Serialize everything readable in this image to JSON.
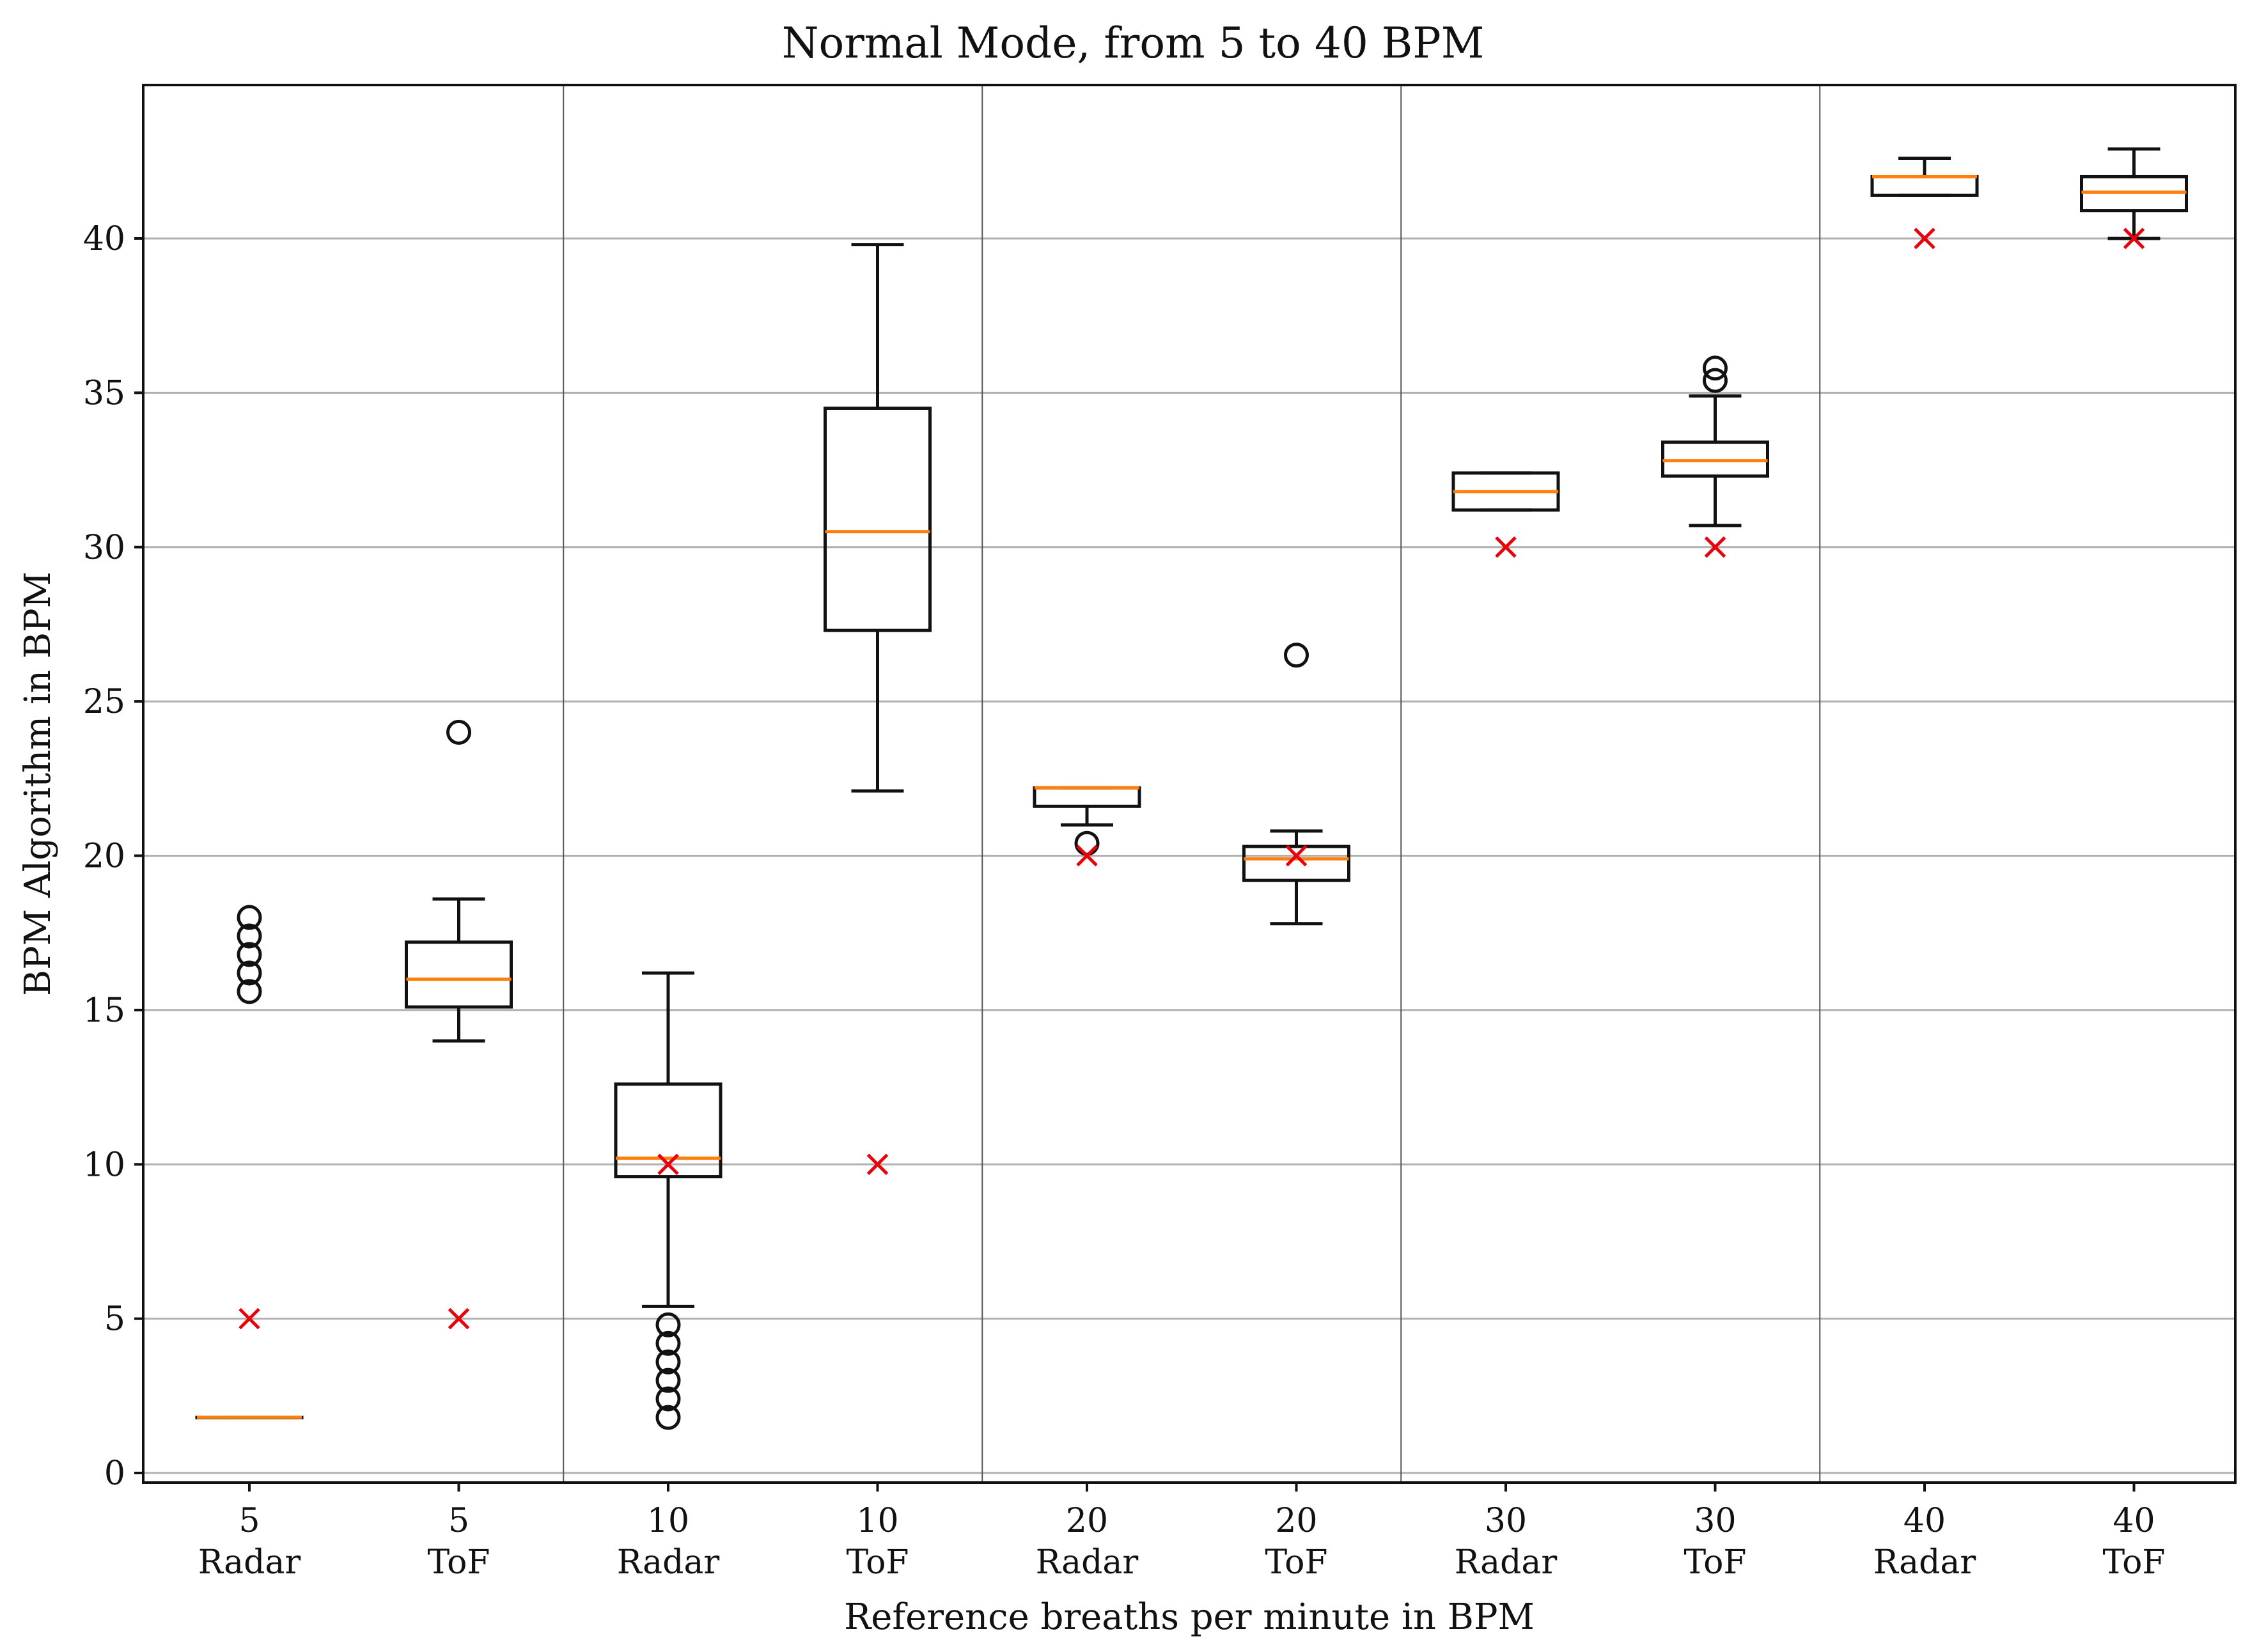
{
  "chart_data": {
    "type": "boxplot",
    "title": "Normal Mode, from 5 to 40 BPM",
    "xlabel": "Reference breaths per minute in BPM",
    "ylabel": "BPM Algorithm in BPM",
    "ylim": [
      -0.3,
      45
    ],
    "yticks": [
      0,
      5,
      10,
      15,
      20,
      25,
      30,
      35,
      40
    ],
    "grid": true,
    "categories": [
      {
        "value": "5",
        "sensor": "Radar"
      },
      {
        "value": "5",
        "sensor": "ToF"
      },
      {
        "value": "10",
        "sensor": "Radar"
      },
      {
        "value": "10",
        "sensor": "ToF"
      },
      {
        "value": "20",
        "sensor": "Radar"
      },
      {
        "value": "20",
        "sensor": "ToF"
      },
      {
        "value": "30",
        "sensor": "Radar"
      },
      {
        "value": "30",
        "sensor": "ToF"
      },
      {
        "value": "40",
        "sensor": "Radar"
      },
      {
        "value": "40",
        "sensor": "ToF"
      }
    ],
    "boxes": [
      {
        "whislo": 1.8,
        "q1": 1.8,
        "med": 1.8,
        "q3": 1.8,
        "whishi": 1.8,
        "fliers": [
          15.6,
          16.2,
          16.8,
          17.4,
          18.0
        ],
        "reference": 5
      },
      {
        "whislo": 14.0,
        "q1": 15.1,
        "med": 16.0,
        "q3": 17.2,
        "whishi": 18.6,
        "fliers": [
          24.0
        ],
        "reference": 5
      },
      {
        "whislo": 5.4,
        "q1": 9.6,
        "med": 10.2,
        "q3": 12.6,
        "whishi": 16.2,
        "fliers": [
          1.8,
          2.4,
          3.0,
          3.6,
          4.2,
          4.8
        ],
        "reference": 10
      },
      {
        "whislo": 22.1,
        "q1": 27.3,
        "med": 30.5,
        "q3": 34.5,
        "whishi": 39.8,
        "fliers": [],
        "reference": 10
      },
      {
        "whislo": 21.0,
        "q1": 21.6,
        "med": 22.2,
        "q3": 22.2,
        "whishi": 22.2,
        "fliers": [
          20.4
        ],
        "reference": 20
      },
      {
        "whislo": 17.8,
        "q1": 19.2,
        "med": 19.9,
        "q3": 20.3,
        "whishi": 20.8,
        "fliers": [
          26.5
        ],
        "reference": 20
      },
      {
        "whislo": 31.2,
        "q1": 31.2,
        "med": 31.8,
        "q3": 32.4,
        "whishi": 32.4,
        "fliers": [],
        "reference": 30
      },
      {
        "whislo": 30.7,
        "q1": 32.3,
        "med": 32.8,
        "q3": 33.4,
        "whishi": 34.9,
        "fliers": [
          35.4,
          35.8
        ],
        "reference": 30
      },
      {
        "whislo": 41.4,
        "q1": 41.4,
        "med": 42.0,
        "q3": 42.0,
        "whishi": 42.6,
        "fliers": [],
        "reference": 40
      },
      {
        "whislo": 40.0,
        "q1": 40.9,
        "med": 41.5,
        "q3": 42.0,
        "whishi": 42.9,
        "fliers": [],
        "reference": 40
      }
    ]
  }
}
